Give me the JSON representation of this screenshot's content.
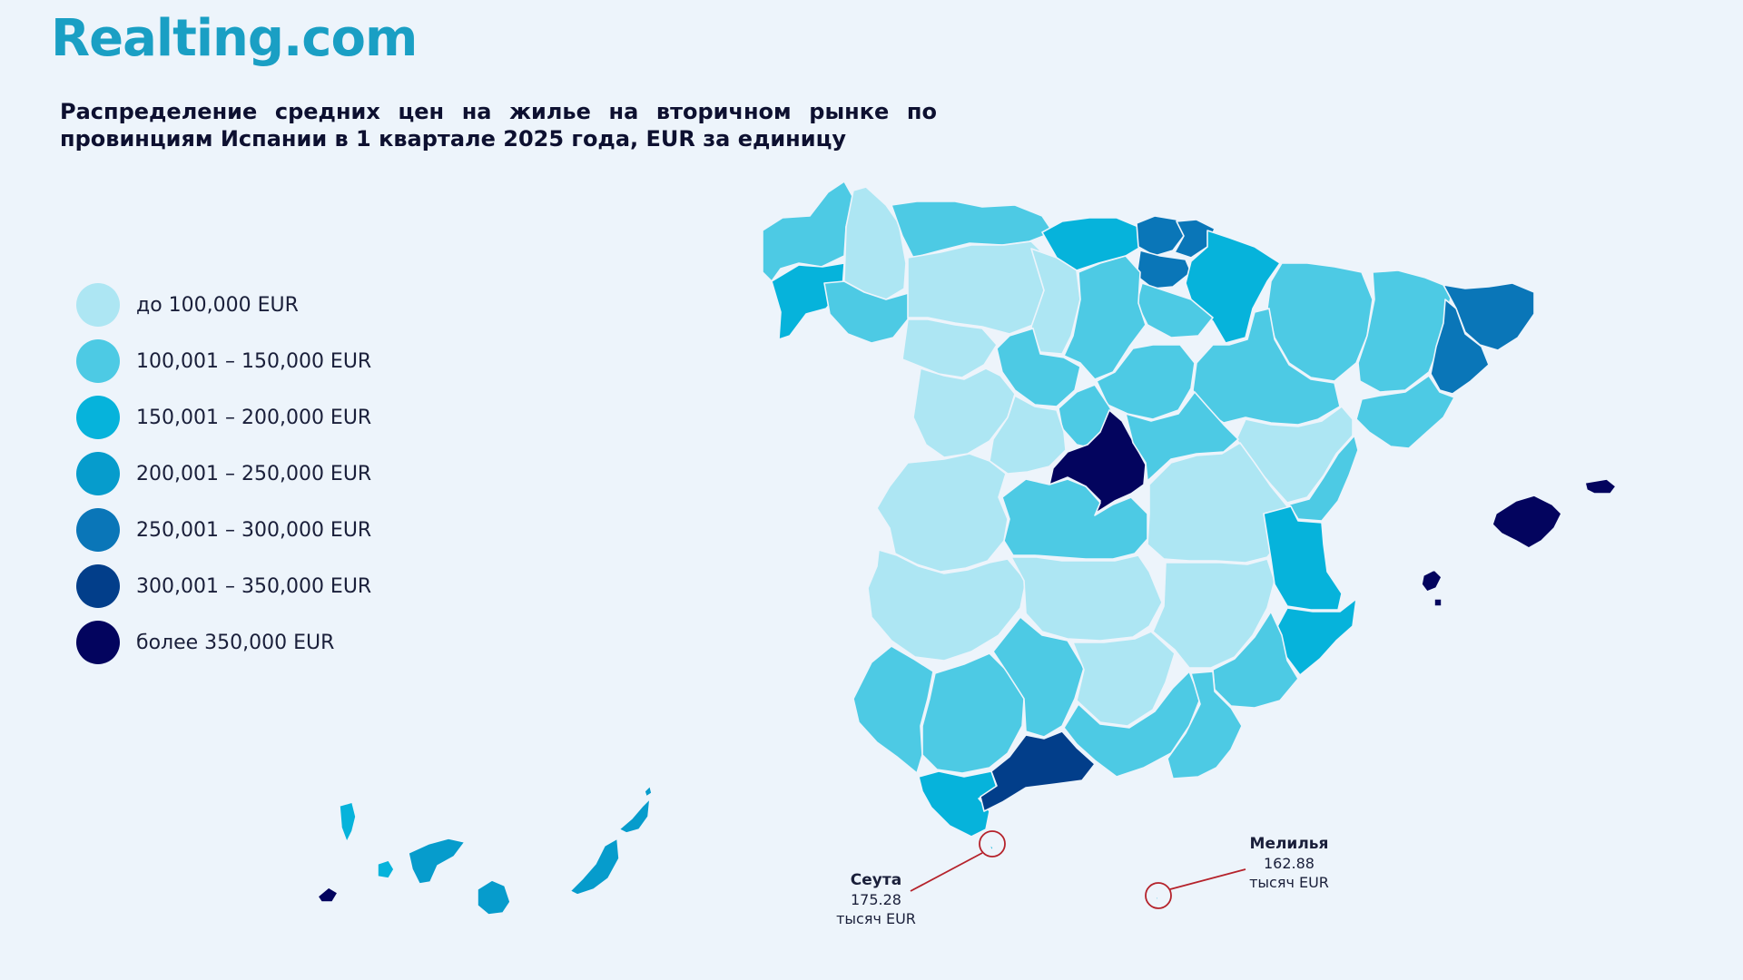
{
  "brand": {
    "logo_text": "Realting.com"
  },
  "title": "Распределение средних цен на жилье на вторичном рынке по провинциям Испании в 1 квартале 2025 года, EUR за единицу",
  "colors": {
    "c1": "#ade6f3",
    "c2": "#4dcae4",
    "c3": "#06b3db",
    "c4": "#069ccc",
    "c5": "#0a76b8",
    "c6": "#023e8a",
    "c7": "#03045e",
    "background": "#edf4fb",
    "callout_ring": "#b5222b"
  },
  "legend": [
    {
      "label": "до 100,000 EUR",
      "color": "#ade6f3"
    },
    {
      "label": "100,001 – 150,000 EUR",
      "color": "#4dcae4"
    },
    {
      "label": "150,001 – 200,000 EUR",
      "color": "#06b3db"
    },
    {
      "label": "200,001 – 250,000 EUR",
      "color": "#069ccc"
    },
    {
      "label": "250,001 – 300,000 EUR",
      "color": "#0a76b8"
    },
    {
      "label": "300,001 – 350,000 EUR",
      "color": "#023e8a"
    },
    {
      "label": "более 350,000 EUR",
      "color": "#03045e"
    }
  ],
  "callouts": {
    "ceuta": {
      "name": "Сеута",
      "value": "175.28",
      "unit": "тысяч EUR"
    },
    "melilla": {
      "name": "Мелилья",
      "value": "162.88",
      "unit": "тысяч EUR"
    }
  }
}
